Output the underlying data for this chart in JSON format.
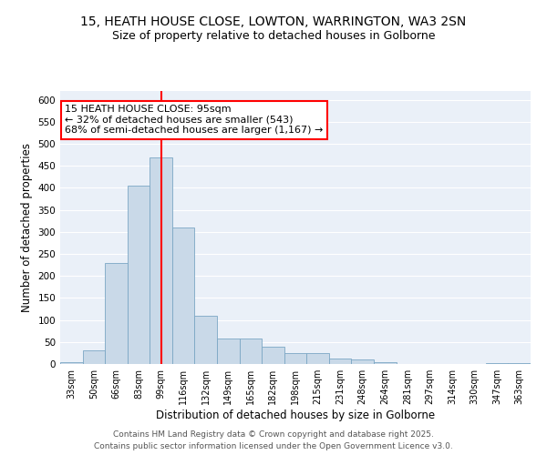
{
  "title1": "15, HEATH HOUSE CLOSE, LOWTON, WARRINGTON, WA3 2SN",
  "title2": "Size of property relative to detached houses in Golborne",
  "xlabel": "Distribution of detached houses by size in Golborne",
  "ylabel": "Number of detached properties",
  "bin_labels": [
    "33sqm",
    "50sqm",
    "66sqm",
    "83sqm",
    "99sqm",
    "116sqm",
    "132sqm",
    "149sqm",
    "165sqm",
    "182sqm",
    "198sqm",
    "215sqm",
    "231sqm",
    "248sqm",
    "264sqm",
    "281sqm",
    "297sqm",
    "314sqm",
    "330sqm",
    "347sqm",
    "363sqm"
  ],
  "bar_values": [
    5,
    30,
    230,
    405,
    470,
    310,
    110,
    57,
    57,
    40,
    25,
    25,
    13,
    10,
    5,
    0,
    0,
    0,
    0,
    3,
    3
  ],
  "bar_color": "#c9d9e8",
  "bar_edge_color": "#7ba7c4",
  "vline_x": 4.0,
  "vline_color": "red",
  "annotation_text": "15 HEATH HOUSE CLOSE: 95sqm\n← 32% of detached houses are smaller (543)\n68% of semi-detached houses are larger (1,167) →",
  "annotation_box_color": "white",
  "annotation_box_edge": "red",
  "ylim": [
    0,
    620
  ],
  "yticks": [
    0,
    50,
    100,
    150,
    200,
    250,
    300,
    350,
    400,
    450,
    500,
    550,
    600
  ],
  "bg_color": "#eaf0f8",
  "grid_color": "white",
  "footer": "Contains HM Land Registry data © Crown copyright and database right 2025.\nContains public sector information licensed under the Open Government Licence v3.0.",
  "title_fontsize": 10,
  "subtitle_fontsize": 9,
  "annotation_fontsize": 8,
  "footer_fontsize": 6.5,
  "ylabel_fontsize": 8.5,
  "xlabel_fontsize": 8.5,
  "tick_fontsize": 7,
  "ytick_fontsize": 7.5
}
